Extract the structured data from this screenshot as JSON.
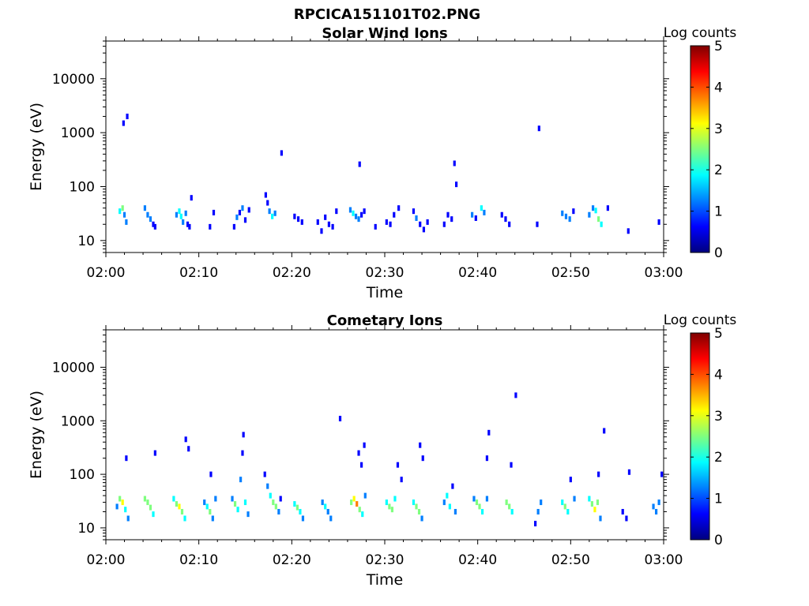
{
  "figure": {
    "title": "RPCICA151101T02.PNG"
  },
  "colors": {
    "colormap": [
      "#00007f",
      "#0000ff",
      "#007fff",
      "#00ffff",
      "#7fff7f",
      "#ffff00",
      "#ff7f00",
      "#ff0000",
      "#7f0000"
    ],
    "axes": "#000000",
    "background": "#ffffff"
  },
  "chart_data": [
    {
      "type": "heatmap",
      "title": "Solar Wind Ions",
      "xlabel": "Time",
      "ylabel": "Energy (eV)",
      "x_ticks": [
        "02:00",
        "02:10",
        "02:20",
        "02:30",
        "02:40",
        "02:50",
        "03:00"
      ],
      "x_range_minutes": [
        0,
        60
      ],
      "y_scale": "log",
      "y_ticks": [
        "10",
        "100",
        "1000",
        "10000"
      ],
      "y_range": [
        6,
        50000
      ],
      "colorbar": {
        "label": "Log counts",
        "range": [
          0,
          5
        ],
        "ticks": [
          "0",
          "1",
          "2",
          "3",
          "4",
          "5"
        ]
      },
      "grid": false,
      "points": [
        [
          1.5,
          35,
          1.8
        ],
        [
          1.8,
          40,
          2.2
        ],
        [
          2.0,
          30,
          1.5
        ],
        [
          2.2,
          22,
          1.0
        ],
        [
          1.9,
          1500,
          0.5
        ],
        [
          2.3,
          2000,
          0.5
        ],
        [
          4.2,
          40,
          1.2
        ],
        [
          4.5,
          30,
          1.5
        ],
        [
          4.8,
          25,
          1.0
        ],
        [
          5.1,
          20,
          0.8
        ],
        [
          5.3,
          18,
          0.6
        ],
        [
          7.6,
          30,
          1.2
        ],
        [
          7.9,
          35,
          2.0
        ],
        [
          8.1,
          28,
          1.6
        ],
        [
          8.3,
          22,
          1.3
        ],
        [
          8.6,
          32,
          1.0
        ],
        [
          8.8,
          20,
          0.7
        ],
        [
          9.0,
          18,
          0.5
        ],
        [
          9.2,
          62,
          0.5
        ],
        [
          11.2,
          18,
          0.5
        ],
        [
          11.6,
          33,
          0.7
        ],
        [
          13.8,
          18,
          0.7
        ],
        [
          14.1,
          27,
          1.0
        ],
        [
          14.4,
          33,
          0.9
        ],
        [
          14.7,
          40,
          1.1
        ],
        [
          15.0,
          24,
          0.8
        ],
        [
          15.4,
          37,
          0.6
        ],
        [
          17.2,
          70,
          0.6
        ],
        [
          17.4,
          50,
          0.8
        ],
        [
          17.6,
          35,
          1.5
        ],
        [
          17.9,
          28,
          1.8
        ],
        [
          18.2,
          32,
          1.3
        ],
        [
          18.9,
          420,
          0.5
        ],
        [
          20.3,
          28,
          0.8
        ],
        [
          20.7,
          25,
          0.9
        ],
        [
          21.1,
          22,
          0.7
        ],
        [
          22.8,
          22,
          0.6
        ],
        [
          23.2,
          15,
          0.5
        ],
        [
          23.6,
          27,
          0.8
        ],
        [
          24.0,
          20,
          0.6
        ],
        [
          24.4,
          18,
          0.6
        ],
        [
          24.8,
          35,
          0.5
        ],
        [
          26.3,
          37,
          1.0
        ],
        [
          26.6,
          32,
          1.6
        ],
        [
          26.9,
          28,
          1.2
        ],
        [
          27.2,
          25,
          1.0
        ],
        [
          27.5,
          30,
          0.9
        ],
        [
          27.8,
          35,
          0.7
        ],
        [
          27.3,
          260,
          0.5
        ],
        [
          29.0,
          18,
          0.5
        ],
        [
          30.2,
          22,
          0.6
        ],
        [
          30.6,
          20,
          0.7
        ],
        [
          31.0,
          30,
          0.5
        ],
        [
          31.5,
          40,
          0.6
        ],
        [
          33.1,
          35,
          0.8
        ],
        [
          33.4,
          26,
          1.0
        ],
        [
          33.8,
          20,
          0.8
        ],
        [
          34.2,
          16,
          0.6
        ],
        [
          34.6,
          22,
          0.5
        ],
        [
          36.4,
          20,
          0.5
        ],
        [
          36.8,
          30,
          0.6
        ],
        [
          37.2,
          25,
          0.7
        ],
        [
          37.5,
          270,
          0.5
        ],
        [
          37.7,
          110,
          0.5
        ],
        [
          39.4,
          30,
          1.0
        ],
        [
          39.8,
          26,
          0.9
        ],
        [
          40.4,
          40,
          2.0
        ],
        [
          40.7,
          33,
          1.5
        ],
        [
          42.6,
          30,
          0.9
        ],
        [
          43.0,
          25,
          0.8
        ],
        [
          43.4,
          20,
          0.6
        ],
        [
          46.4,
          20,
          0.5
        ],
        [
          46.6,
          1200,
          0.5
        ],
        [
          49.1,
          32,
          1.4
        ],
        [
          49.5,
          28,
          1.2
        ],
        [
          49.9,
          25,
          1.0
        ],
        [
          50.3,
          35,
          0.8
        ],
        [
          52.0,
          30,
          1.0
        ],
        [
          52.4,
          40,
          1.3
        ],
        [
          52.7,
          36,
          1.8
        ],
        [
          53.0,
          25,
          2.2
        ],
        [
          53.3,
          20,
          1.6
        ],
        [
          54.0,
          40,
          0.6
        ],
        [
          56.2,
          15,
          0.5
        ],
        [
          59.5,
          22,
          0.6
        ]
      ]
    },
    {
      "type": "heatmap",
      "title": "Cometary Ions",
      "xlabel": "Time",
      "ylabel": "Energy (eV)",
      "x_ticks": [
        "02:00",
        "02:10",
        "02:20",
        "02:30",
        "02:40",
        "02:50",
        "03:00"
      ],
      "x_range_minutes": [
        0,
        60
      ],
      "y_scale": "log",
      "y_ticks": [
        "10",
        "100",
        "1000",
        "10000"
      ],
      "y_range": [
        6,
        50000
      ],
      "colorbar": {
        "label": "Log counts",
        "range": [
          0,
          5
        ],
        "ticks": [
          "0",
          "1",
          "2",
          "3",
          "4",
          "5"
        ]
      },
      "grid": false,
      "points": [
        [
          1.2,
          25,
          1.2
        ],
        [
          1.5,
          35,
          2.2
        ],
        [
          1.8,
          30,
          3.2
        ],
        [
          2.1,
          22,
          2.0
        ],
        [
          2.4,
          15,
          1.0
        ],
        [
          2.2,
          200,
          0.6
        ],
        [
          4.2,
          35,
          2.2
        ],
        [
          4.5,
          30,
          2.6
        ],
        [
          4.8,
          24,
          2.4
        ],
        [
          5.1,
          18,
          1.6
        ],
        [
          5.3,
          250,
          0.5
        ],
        [
          7.3,
          35,
          2.0
        ],
        [
          7.6,
          28,
          2.8
        ],
        [
          7.9,
          25,
          3.0
        ],
        [
          8.2,
          20,
          2.4
        ],
        [
          8.5,
          15,
          1.6
        ],
        [
          8.6,
          450,
          0.6
        ],
        [
          8.9,
          300,
          0.7
        ],
        [
          10.6,
          30,
          1.5
        ],
        [
          10.9,
          25,
          2.0
        ],
        [
          11.2,
          20,
          2.2
        ],
        [
          11.5,
          15,
          1.4
        ],
        [
          11.3,
          100,
          0.6
        ],
        [
          11.8,
          35,
          1.0
        ],
        [
          13.6,
          35,
          1.5
        ],
        [
          13.9,
          28,
          2.4
        ],
        [
          14.2,
          22,
          2.0
        ],
        [
          14.5,
          80,
          1.1
        ],
        [
          14.7,
          250,
          0.8
        ],
        [
          15.0,
          30,
          1.8
        ],
        [
          15.3,
          18,
          1.2
        ],
        [
          14.8,
          550,
          0.5
        ],
        [
          17.1,
          100,
          0.8
        ],
        [
          17.4,
          60,
          1.0
        ],
        [
          17.7,
          40,
          1.6
        ],
        [
          18.0,
          30,
          2.8
        ],
        [
          18.3,
          25,
          2.2
        ],
        [
          18.6,
          20,
          1.2
        ],
        [
          18.8,
          35,
          0.9
        ],
        [
          20.3,
          28,
          2.0
        ],
        [
          20.6,
          24,
          2.4
        ],
        [
          20.9,
          20,
          1.8
        ],
        [
          21.2,
          15,
          1.2
        ],
        [
          23.3,
          30,
          1.5
        ],
        [
          23.6,
          25,
          2.0
        ],
        [
          23.9,
          20,
          1.5
        ],
        [
          24.2,
          15,
          1.0
        ],
        [
          25.2,
          1100,
          0.6
        ],
        [
          26.4,
          30,
          2.2
        ],
        [
          26.7,
          35,
          3.0
        ],
        [
          27.0,
          28,
          3.5
        ],
        [
          27.3,
          22,
          2.8
        ],
        [
          27.6,
          18,
          1.8
        ],
        [
          27.9,
          40,
          1.2
        ],
        [
          27.2,
          250,
          0.8
        ],
        [
          27.5,
          150,
          0.7
        ],
        [
          27.8,
          350,
          0.6
        ],
        [
          30.2,
          30,
          1.8
        ],
        [
          30.5,
          25,
          2.8
        ],
        [
          30.8,
          22,
          2.4
        ],
        [
          31.1,
          35,
          1.6
        ],
        [
          31.4,
          150,
          0.6
        ],
        [
          31.8,
          80,
          0.7
        ],
        [
          33.1,
          30,
          2.0
        ],
        [
          33.4,
          25,
          2.6
        ],
        [
          33.7,
          20,
          2.2
        ],
        [
          34.0,
          15,
          1.4
        ],
        [
          33.8,
          350,
          0.5
        ],
        [
          34.1,
          200,
          0.6
        ],
        [
          36.4,
          30,
          1.4
        ],
        [
          36.7,
          40,
          1.6
        ],
        [
          37.0,
          25,
          2.0
        ],
        [
          37.3,
          60,
          0.8
        ],
        [
          37.6,
          20,
          1.2
        ],
        [
          39.6,
          35,
          1.5
        ],
        [
          39.9,
          30,
          2.6
        ],
        [
          40.2,
          25,
          2.2
        ],
        [
          40.5,
          20,
          1.6
        ],
        [
          41.0,
          35,
          1.0
        ],
        [
          41.2,
          600,
          0.5
        ],
        [
          41.0,
          200,
          0.7
        ],
        [
          43.1,
          30,
          2.2
        ],
        [
          43.4,
          25,
          2.6
        ],
        [
          43.7,
          20,
          1.6
        ],
        [
          44.1,
          3000,
          0.5
        ],
        [
          43.6,
          150,
          0.5
        ],
        [
          46.2,
          12,
          0.6
        ],
        [
          46.5,
          20,
          1.0
        ],
        [
          46.8,
          30,
          1.2
        ],
        [
          49.1,
          30,
          2.0
        ],
        [
          49.4,
          25,
          2.4
        ],
        [
          49.7,
          20,
          1.8
        ],
        [
          50.0,
          80,
          0.8
        ],
        [
          50.4,
          35,
          1.2
        ],
        [
          52.0,
          35,
          1.8
        ],
        [
          52.3,
          28,
          2.8
        ],
        [
          52.6,
          22,
          3.2
        ],
        [
          52.9,
          30,
          2.4
        ],
        [
          53.2,
          15,
          1.2
        ],
        [
          53.6,
          650,
          0.5
        ],
        [
          53.0,
          100,
          0.7
        ],
        [
          55.6,
          20,
          0.9
        ],
        [
          56.0,
          15,
          0.8
        ],
        [
          56.3,
          110,
          0.5
        ],
        [
          58.9,
          25,
          1.4
        ],
        [
          59.2,
          20,
          1.2
        ],
        [
          59.5,
          30,
          1.0
        ],
        [
          59.8,
          100,
          0.5
        ]
      ]
    }
  ]
}
